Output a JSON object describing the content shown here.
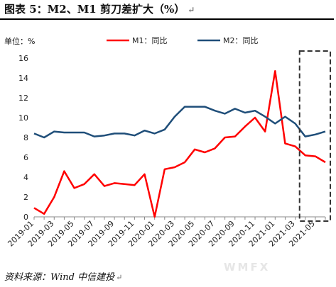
{
  "header": {
    "title": "图表 5：M2、M1 剪刀差扩大（%）",
    "return_mark": "↵"
  },
  "unit_label": "单位：%",
  "footer": {
    "source": "资料来源：Wind   中信建投",
    "return_mark": "↵",
    "watermark_text": "WMFX"
  },
  "chart_data": {
    "type": "line",
    "ylim": [
      0,
      16
    ],
    "yticks": [
      0,
      2,
      4,
      6,
      8,
      10,
      12,
      14,
      16
    ],
    "grid": false,
    "legend_position": "top-center",
    "x_tick_labels": [
      "2019-01",
      "2019-03",
      "2019-05",
      "2019-07",
      "2019-09",
      "2019-11",
      "2020-01",
      "2020-03",
      "2020-05",
      "2020-07",
      "2020-09",
      "2020-11",
      "2021-01",
      "2021-03",
      "2021-05"
    ],
    "x": [
      "2019-01",
      "2019-02",
      "2019-03",
      "2019-04",
      "2019-05",
      "2019-06",
      "2019-07",
      "2019-08",
      "2019-09",
      "2019-10",
      "2019-11",
      "2019-12",
      "2020-01",
      "2020-02",
      "2020-03",
      "2020-04",
      "2020-05",
      "2020-06",
      "2020-07",
      "2020-08",
      "2020-09",
      "2020-10",
      "2020-11",
      "2020-12",
      "2021-01",
      "2021-02",
      "2021-03",
      "2021-04",
      "2021-05",
      "2021-06"
    ],
    "series": [
      {
        "name": "M1：同比",
        "color": "#ff0000",
        "values": [
          0.9,
          0.3,
          2.0,
          4.6,
          2.9,
          3.3,
          4.3,
          3.1,
          3.4,
          3.3,
          3.2,
          4.3,
          0.0,
          4.8,
          5.0,
          5.5,
          6.8,
          6.5,
          6.9,
          8.0,
          8.1,
          9.1,
          10.0,
          8.6,
          14.7,
          7.4,
          7.1,
          6.2,
          6.1,
          5.5
        ]
      },
      {
        "name": "M2：同比",
        "color": "#1f4e79",
        "values": [
          8.4,
          8.0,
          8.6,
          8.5,
          8.5,
          8.5,
          8.1,
          8.2,
          8.4,
          8.4,
          8.2,
          8.7,
          8.4,
          8.8,
          10.1,
          11.1,
          11.1,
          11.1,
          10.7,
          10.4,
          10.9,
          10.5,
          10.7,
          10.1,
          9.4,
          10.1,
          9.4,
          8.1,
          8.3,
          8.6
        ]
      }
    ],
    "highlight_box": {
      "from": "2021-04",
      "to": "2021-06"
    }
  }
}
